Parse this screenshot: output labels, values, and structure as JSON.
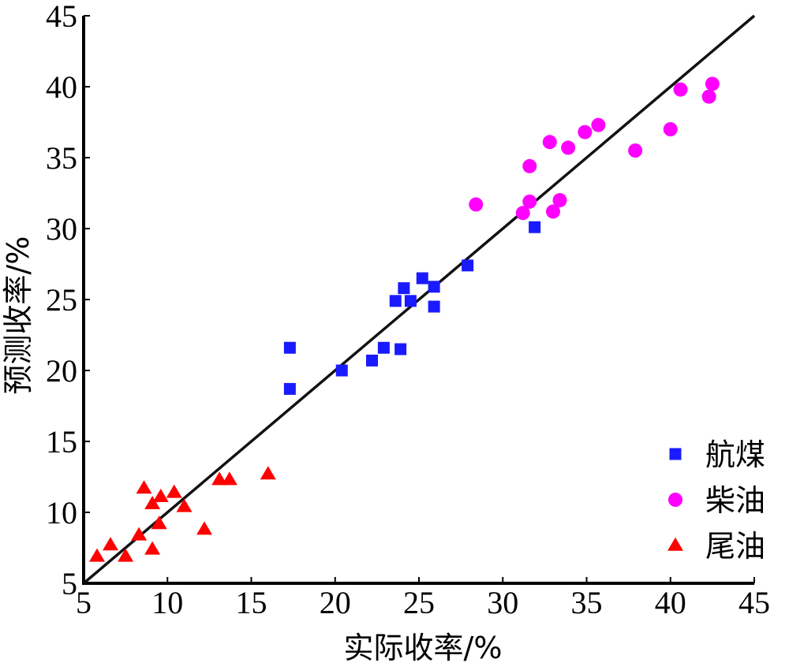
{
  "chart_data": {
    "type": "scatter",
    "xlabel": "实际收率/%",
    "ylabel": "预测收率/%",
    "xlim": [
      5,
      45
    ],
    "ylim": [
      5,
      45
    ],
    "xticks": [
      "5",
      "10",
      "15",
      "20",
      "25",
      "30",
      "35",
      "40",
      "45"
    ],
    "yticks": [
      "5",
      "10",
      "15",
      "20",
      "25",
      "30",
      "35",
      "40",
      "45"
    ],
    "grid": false,
    "legend": "bottom-right",
    "reference_line": {
      "x": [
        5,
        45
      ],
      "y": [
        5,
        45
      ]
    },
    "series": [
      {
        "name": "航煤",
        "marker": "square",
        "color": "#1a1aff",
        "points": [
          [
            17.3,
            21.6
          ],
          [
            17.3,
            18.7
          ],
          [
            20.4,
            20.0
          ],
          [
            22.2,
            20.7
          ],
          [
            22.9,
            21.6
          ],
          [
            23.9,
            21.5
          ],
          [
            23.6,
            24.9
          ],
          [
            24.1,
            25.8
          ],
          [
            24.5,
            24.9
          ],
          [
            25.2,
            26.5
          ],
          [
            25.9,
            25.9
          ],
          [
            25.9,
            24.5
          ],
          [
            27.9,
            27.4
          ],
          [
            31.9,
            30.1
          ]
        ]
      },
      {
        "name": "柴油",
        "marker": "circle",
        "color": "#ff00ff",
        "points": [
          [
            28.4,
            31.7
          ],
          [
            31.2,
            31.1
          ],
          [
            31.6,
            31.9
          ],
          [
            31.6,
            34.4
          ],
          [
            32.8,
            36.1
          ],
          [
            33.0,
            31.2
          ],
          [
            33.4,
            32.0
          ],
          [
            33.9,
            35.7
          ],
          [
            34.9,
            36.8
          ],
          [
            35.7,
            37.3
          ],
          [
            37.9,
            35.5
          ],
          [
            40.0,
            37.0
          ],
          [
            40.6,
            39.8
          ],
          [
            42.3,
            39.3
          ],
          [
            42.5,
            40.2
          ]
        ]
      },
      {
        "name": "尾油",
        "marker": "triangle",
        "color": "#ff0000",
        "points": [
          [
            5.8,
            6.9
          ],
          [
            6.6,
            7.7
          ],
          [
            7.5,
            6.9
          ],
          [
            8.3,
            8.4
          ],
          [
            8.6,
            11.7
          ],
          [
            9.1,
            7.4
          ],
          [
            9.1,
            10.6
          ],
          [
            9.5,
            9.2
          ],
          [
            9.6,
            11.1
          ],
          [
            10.4,
            11.4
          ],
          [
            11.0,
            10.4
          ],
          [
            12.2,
            8.8
          ],
          [
            13.1,
            12.3
          ],
          [
            13.7,
            12.3
          ],
          [
            16.0,
            12.7
          ]
        ]
      }
    ]
  }
}
